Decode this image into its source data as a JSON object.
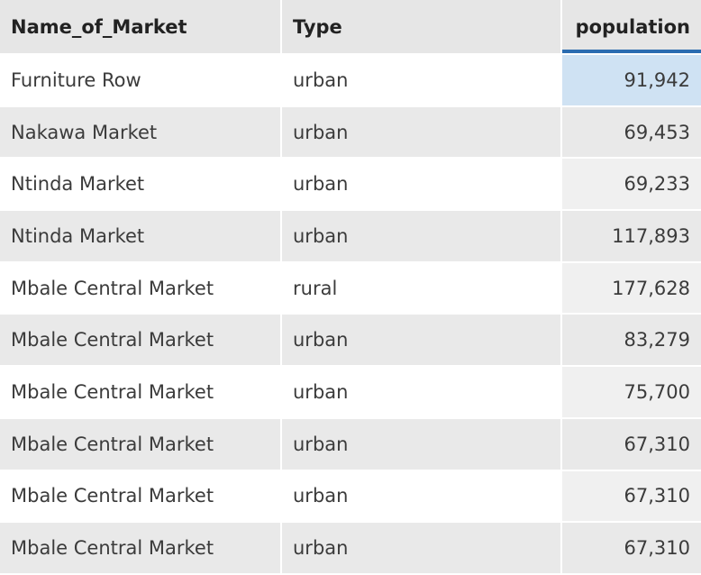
{
  "columns": {
    "name": "Name_of_Market",
    "type": "Type",
    "population": "population"
  },
  "rows": [
    {
      "name": "Furniture Row",
      "type": "urban",
      "population": "91,942"
    },
    {
      "name": "Nakawa Market",
      "type": "urban",
      "population": "69,453"
    },
    {
      "name": "Ntinda Market",
      "type": "urban",
      "population": "69,233"
    },
    {
      "name": "Ntinda Market",
      "type": "urban",
      "population": "117,893"
    },
    {
      "name": "Mbale Central Market",
      "type": "rural",
      "population": "177,628"
    },
    {
      "name": "Mbale Central Market",
      "type": "urban",
      "population": "83,279"
    },
    {
      "name": "Mbale Central Market",
      "type": "urban",
      "population": "75,700"
    },
    {
      "name": "Mbale Central Market",
      "type": "urban",
      "population": "67,310"
    },
    {
      "name": "Mbale Central Market",
      "type": "urban",
      "population": "67,310"
    },
    {
      "name": "Mbale Central Market",
      "type": "urban",
      "population": "67,310"
    }
  ],
  "sort_column": "population",
  "selected_cell": {
    "row": 0,
    "column": "population"
  }
}
